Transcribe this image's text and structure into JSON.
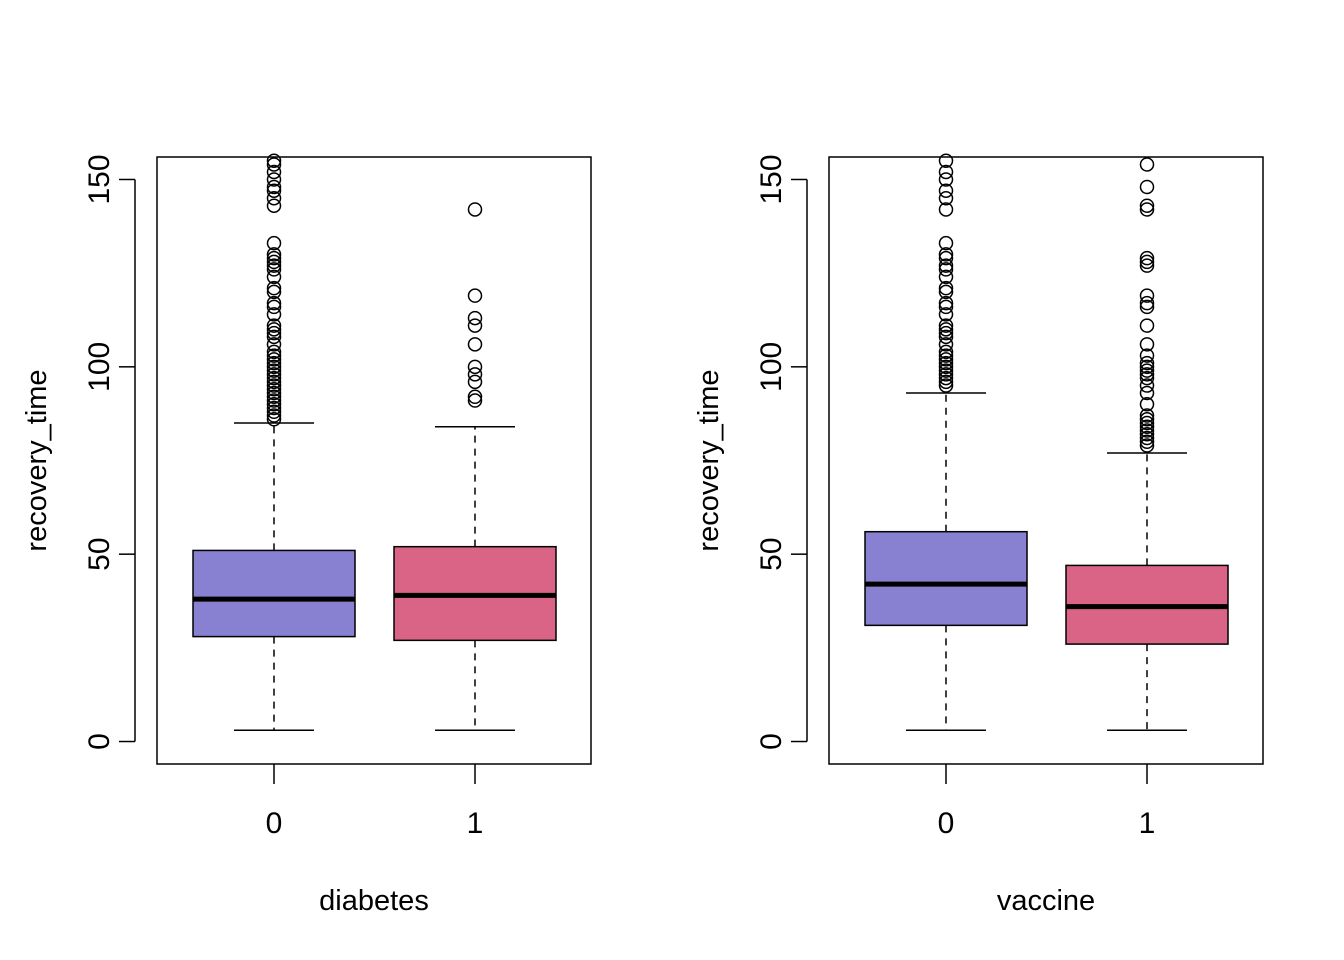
{
  "chart_data": [
    {
      "type": "boxplot",
      "xlabel": "diabetes",
      "ylabel": "recovery_time",
      "categories": [
        "0",
        "1"
      ],
      "colors": [
        "#8880D0",
        "#D96486"
      ],
      "ylim": [
        -6,
        156
      ],
      "yticks": [
        0,
        50,
        100,
        150
      ],
      "yticklabels": [
        "0",
        "50",
        "100",
        "150"
      ],
      "grid": false,
      "boxes": [
        {
          "label": "0",
          "whisker_low": 3,
          "q1": 28,
          "median": 38,
          "q3": 51,
          "whisker_high": 85,
          "outliers": [
            86,
            87,
            88,
            89,
            90,
            91,
            92,
            93,
            94,
            95,
            96,
            97,
            98,
            99,
            100,
            101,
            102,
            103,
            104,
            106,
            108,
            109,
            110,
            111,
            114,
            116,
            117,
            120,
            121,
            124,
            126,
            127,
            128,
            129,
            130,
            133,
            143,
            145,
            147,
            148,
            150,
            152,
            154,
            155
          ]
        },
        {
          "label": "1",
          "whisker_low": 3,
          "q1": 27,
          "median": 39,
          "q3": 52,
          "whisker_high": 84,
          "outliers": [
            91,
            92,
            96,
            98,
            100,
            106,
            111,
            113,
            119,
            142
          ]
        }
      ]
    },
    {
      "type": "boxplot",
      "xlabel": "vaccine",
      "ylabel": "recovery_time",
      "categories": [
        "0",
        "1"
      ],
      "colors": [
        "#8880D0",
        "#D96486"
      ],
      "ylim": [
        -6,
        156
      ],
      "yticks": [
        0,
        50,
        100,
        150
      ],
      "yticklabels": [
        "0",
        "50",
        "100",
        "150"
      ],
      "grid": false,
      "boxes": [
        {
          "label": "0",
          "whisker_low": 3,
          "q1": 31,
          "median": 42,
          "q3": 56,
          "whisker_high": 93,
          "outliers": [
            95,
            96,
            97,
            98,
            99,
            100,
            101,
            102,
            103,
            104,
            106,
            108,
            109,
            110,
            111,
            114,
            116,
            117,
            120,
            121,
            124,
            126,
            127,
            129,
            130,
            133,
            142,
            145,
            147,
            150,
            152,
            155
          ]
        },
        {
          "label": "1",
          "whisker_low": 3,
          "q1": 26,
          "median": 36,
          "q3": 47,
          "whisker_high": 77,
          "outliers": [
            79,
            80,
            81,
            82,
            83,
            84,
            85,
            86,
            87,
            90,
            93,
            95,
            97,
            98,
            99,
            100,
            101,
            103,
            106,
            111,
            116,
            117,
            119,
            127,
            128,
            129,
            142,
            143,
            148,
            154
          ]
        }
      ]
    }
  ]
}
